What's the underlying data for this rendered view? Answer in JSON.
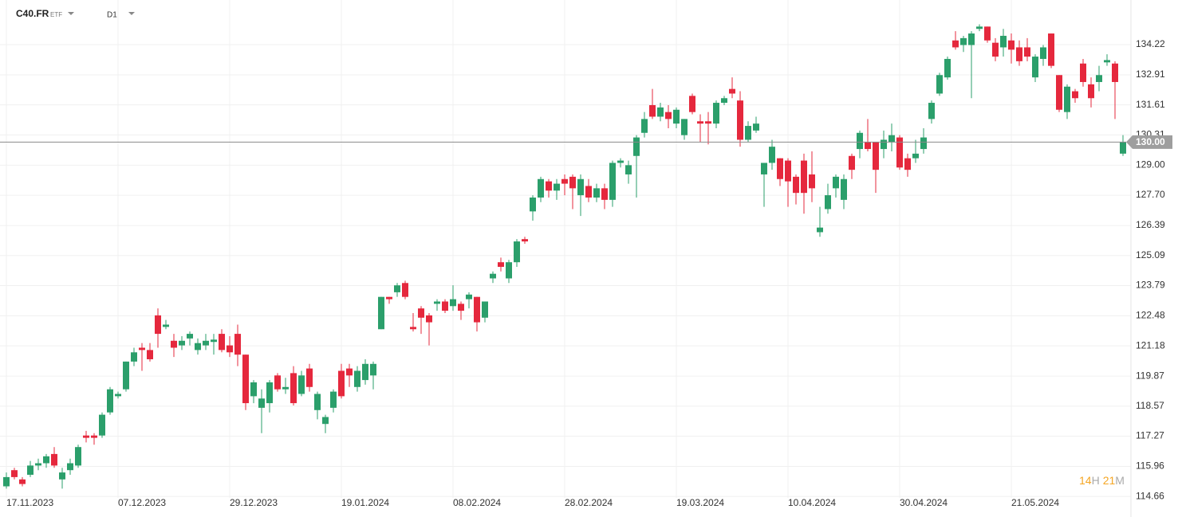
{
  "header": {
    "symbol": "C40.FR",
    "symbol_type": "ETF",
    "timeframe": "D1"
  },
  "countdown": {
    "hours": 14,
    "hours_unit": "H",
    "minutes": 21,
    "minutes_unit": "M"
  },
  "chart_data": {
    "type": "candlestick",
    "categories": [
      "17.11.2023",
      null,
      null,
      null,
      null,
      null,
      null,
      null,
      null,
      null,
      null,
      null,
      null,
      null,
      "07.12.2023",
      null,
      null,
      null,
      null,
      null,
      null,
      null,
      null,
      null,
      null,
      null,
      null,
      null,
      "29.12.2023",
      null,
      null,
      null,
      null,
      null,
      null,
      null,
      null,
      null,
      null,
      null,
      null,
      null,
      "19.01.2024",
      null,
      null,
      null,
      null,
      null,
      null,
      null,
      null,
      null,
      null,
      null,
      null,
      null,
      "08.02.2024",
      null,
      null,
      null,
      null,
      null,
      null,
      null,
      null,
      null,
      null,
      null,
      null,
      null,
      "28.02.2024",
      null,
      null,
      null,
      null,
      null,
      null,
      null,
      null,
      null,
      null,
      null,
      null,
      null,
      "19.03.2024",
      null,
      null,
      null,
      null,
      null,
      null,
      null,
      null,
      null,
      null,
      null,
      null,
      null,
      "10.04.2024",
      null,
      null,
      null,
      null,
      null,
      null,
      null,
      null,
      null,
      null,
      null,
      null,
      null,
      "30.04.2024",
      null,
      null,
      null,
      null,
      null,
      null,
      null,
      null,
      null,
      null,
      null,
      null,
      null,
      "21.05.2024",
      null,
      null,
      null,
      null,
      null,
      null,
      null,
      null,
      null,
      null,
      null,
      null,
      null,
      null
    ],
    "open": [
      115.1,
      115.8,
      115.4,
      115.6,
      116.0,
      116.1,
      116.5,
      115.4,
      115.8,
      116.0,
      117.3,
      117.3,
      117.3,
      118.3,
      119.0,
      119.3,
      120.5,
      121.1,
      121.0,
      122.5,
      122.0,
      121.4,
      121.2,
      121.5,
      121.0,
      121.2,
      121.35,
      121.7,
      121.2,
      121.7,
      120.8,
      119.0,
      118.5,
      118.7,
      119.9,
      119.3,
      120.0,
      119.1,
      120.2,
      118.4,
      117.8,
      118.5,
      120.1,
      120.2,
      119.4,
      119.7,
      119.9,
      121.9,
      123.3,
      123.5,
      123.9,
      122.0,
      122.8,
      122.5,
      123.0,
      123.1,
      122.9,
      123.0,
      123.2,
      123.3,
      122.4,
      124.1,
      124.8,
      124.1,
      124.8,
      125.8,
      127.0,
      127.6,
      128.3,
      127.9,
      128.4,
      128.5,
      127.7,
      128.1,
      127.6,
      128.0,
      127.5,
      129.1,
      128.6,
      129.4,
      130.4,
      131.6,
      131.1,
      131.3,
      130.8,
      130.3,
      132.0,
      130.9,
      130.9,
      130.8,
      131.7,
      132.3,
      131.8,
      130.1,
      130.5,
      128.6,
      129.1,
      129.3,
      129.2,
      128.5,
      129.2,
      128.6,
      126.1,
      127.1,
      128.0,
      127.5,
      129.4,
      129.7,
      130.0,
      130.0,
      129.7,
      130.0,
      130.2,
      129.3,
      129.3,
      129.7,
      131.0,
      132.1,
      132.8,
      134.4,
      134.2,
      134.2,
      134.9,
      135.0,
      134.3,
      134.1,
      134.4,
      134.1,
      134.1,
      132.8,
      133.6,
      134.7,
      132.9,
      131.3,
      132.2,
      133.4,
      132.5,
      132.6,
      133.45,
      133.4,
      129.5
    ],
    "high": [
      115.7,
      115.9,
      115.5,
      116.2,
      116.3,
      116.5,
      116.8,
      115.9,
      116.3,
      116.9,
      117.5,
      117.4,
      118.3,
      119.4,
      119.2,
      120.5,
      121.1,
      121.3,
      121.3,
      122.8,
      122.3,
      121.7,
      121.6,
      121.8,
      121.5,
      121.7,
      121.7,
      121.9,
      121.6,
      122.1,
      120.8,
      119.7,
      119.3,
      119.7,
      120.0,
      119.8,
      120.3,
      120.1,
      120.4,
      119.2,
      118.2,
      119.3,
      120.4,
      120.4,
      120.3,
      120.6,
      120.5,
      123.3,
      123.3,
      123.9,
      124.0,
      122.6,
      122.9,
      122.6,
      123.2,
      123.2,
      123.8,
      123.1,
      123.5,
      123.3,
      123.1,
      124.4,
      125.0,
      124.9,
      125.8,
      125.9,
      127.7,
      128.5,
      128.4,
      128.4,
      128.6,
      128.6,
      128.6,
      128.4,
      128.2,
      128.2,
      129.2,
      129.3,
      129.2,
      130.3,
      131.3,
      132.3,
      131.7,
      131.6,
      131.5,
      131.0,
      132.1,
      131.2,
      131.3,
      131.8,
      132.0,
      132.8,
      132.2,
      130.9,
      131.1,
      129.1,
      130.1,
      129.3,
      129.3,
      128.6,
      129.5,
      129.6,
      127.2,
      128.2,
      128.6,
      128.6,
      129.5,
      130.5,
      131.0,
      130.0,
      130.5,
      130.8,
      130.3,
      129.5,
      130.1,
      130.6,
      131.8,
      133.0,
      133.7,
      134.8,
      134.6,
      134.8,
      135.1,
      135.0,
      134.5,
      134.9,
      134.7,
      134.4,
      134.5,
      133.8,
      134.2,
      134.7,
      132.9,
      132.5,
      132.3,
      133.6,
      132.8,
      133.3,
      133.8,
      133.5,
      130.3
    ],
    "low": [
      115.0,
      115.4,
      115.1,
      115.5,
      115.8,
      115.9,
      115.9,
      115.0,
      115.6,
      115.9,
      117.0,
      116.9,
      117.2,
      118.2,
      118.9,
      119.2,
      120.3,
      120.1,
      120.5,
      121.1,
      121.9,
      120.7,
      121.0,
      121.2,
      120.8,
      121.0,
      120.8,
      120.9,
      120.7,
      120.3,
      118.4,
      118.7,
      117.4,
      118.3,
      119.2,
      119.1,
      118.6,
      119.0,
      119.2,
      118.0,
      117.4,
      118.3,
      118.9,
      119.4,
      119.2,
      119.5,
      119.3,
      121.9,
      123.0,
      123.3,
      123.2,
      121.8,
      121.7,
      121.2,
      122.7,
      122.6,
      122.7,
      122.3,
      122.8,
      121.8,
      122.2,
      123.9,
      124.4,
      123.9,
      124.6,
      125.6,
      126.6,
      127.4,
      127.6,
      127.5,
      127.7,
      127.1,
      126.8,
      127.4,
      127.4,
      127.1,
      127.2,
      128.9,
      128.2,
      127.6,
      130.2,
      131.0,
      130.9,
      130.6,
      130.6,
      130.1,
      131.2,
      130.0,
      129.9,
      130.6,
      131.6,
      131.9,
      129.8,
      130.0,
      130.4,
      127.2,
      128.8,
      128.1,
      127.2,
      127.3,
      126.9,
      127.4,
      125.9,
      126.9,
      127.6,
      127.1,
      128.4,
      129.3,
      129.6,
      127.8,
      129.3,
      129.6,
      128.8,
      128.5,
      129.1,
      129.5,
      130.8,
      132.0,
      132.7,
      134.0,
      133.9,
      131.9,
      134.8,
      134.3,
      133.5,
      133.7,
      133.4,
      133.3,
      133.5,
      132.6,
      133.3,
      133.2,
      131.3,
      131.0,
      131.7,
      132.4,
      131.5,
      132.2,
      133.3,
      131.0,
      129.4
    ],
    "close": [
      115.5,
      115.5,
      115.2,
      116.0,
      116.1,
      116.4,
      116.0,
      115.7,
      116.1,
      116.8,
      117.2,
      117.2,
      118.2,
      119.3,
      119.1,
      120.5,
      120.9,
      121.0,
      120.6,
      121.7,
      122.1,
      121.1,
      121.4,
      121.7,
      121.3,
      121.4,
      121.45,
      121.0,
      120.9,
      120.8,
      118.7,
      119.6,
      118.9,
      119.6,
      119.3,
      119.4,
      118.7,
      119.9,
      119.4,
      119.1,
      118.1,
      119.2,
      119.0,
      119.9,
      120.1,
      120.4,
      120.4,
      123.3,
      123.2,
      123.8,
      123.3,
      121.9,
      122.4,
      122.2,
      123.1,
      122.7,
      123.2,
      122.7,
      123.4,
      122.2,
      123.1,
      124.3,
      124.6,
      124.8,
      125.7,
      125.7,
      127.6,
      128.4,
      127.9,
      128.2,
      128.2,
      128.0,
      128.4,
      127.6,
      128.0,
      127.5,
      129.1,
      129.2,
      129.0,
      130.2,
      131.0,
      131.1,
      131.5,
      131.0,
      131.4,
      131.0,
      131.3,
      130.8,
      130.8,
      131.7,
      131.9,
      132.1,
      130.1,
      130.7,
      130.8,
      129.1,
      129.8,
      128.4,
      128.3,
      127.8,
      127.8,
      128.0,
      126.3,
      127.7,
      128.5,
      128.4,
      128.8,
      130.4,
      129.7,
      128.8,
      130.1,
      130.3,
      128.9,
      128.8,
      129.5,
      130.2,
      131.7,
      132.9,
      133.6,
      134.1,
      134.5,
      134.7,
      135.0,
      134.4,
      133.7,
      134.6,
      134.0,
      133.5,
      133.7,
      133.7,
      134.1,
      133.3,
      131.4,
      132.4,
      131.9,
      132.6,
      131.9,
      132.9,
      133.55,
      132.6,
      130.0
    ],
    "up_color": "#2b9f6b",
    "down_color": "#e5283d",
    "ylim": [
      114.6,
      136.15
    ],
    "yticks": [
      {
        "value": 114.66,
        "label": "114.66"
      },
      115.96,
      117.27,
      118.57,
      119.87,
      121.18,
      122.48,
      123.79,
      125.09,
      126.39,
      {
        "value": 127.7,
        "label": "127.70"
      },
      {
        "value": 129,
        "label": "129.00"
      },
      130.31,
      131.61,
      132.91,
      134.22
    ],
    "grid": true,
    "current_price": {
      "value": 130,
      "label": "130.00"
    },
    "current_price_color": "#9e9e9e"
  }
}
